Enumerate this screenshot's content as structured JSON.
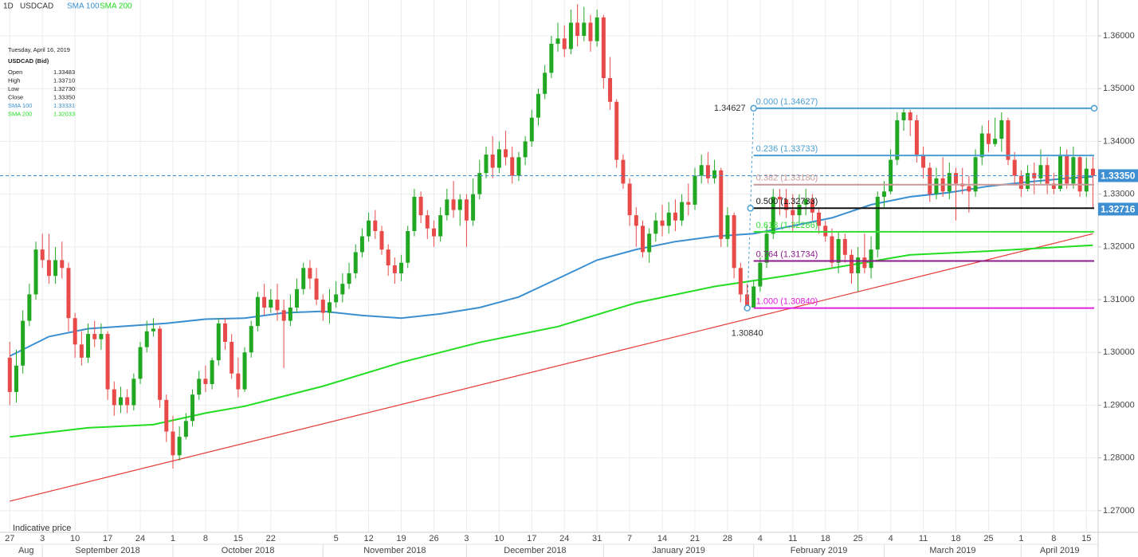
{
  "header": {
    "interval": "1D",
    "symbol": "USDCAD"
  },
  "info_box": {
    "date": "Tuesday, April 16, 2019",
    "title": "USDCAD (Bid)",
    "rows": [
      {
        "label": "Open",
        "value": "1.33483"
      },
      {
        "label": "High",
        "value": "1.33710"
      },
      {
        "label": "Low",
        "value": "1.32730"
      },
      {
        "label": "Close",
        "value": "1.33350"
      },
      {
        "label": "SMA 100",
        "value": "1.33331"
      },
      {
        "label": "SMA 200",
        "value": "1.32033"
      }
    ]
  },
  "chart_data": {
    "type": "candlestick",
    "up_color": "#22a722",
    "down_color": "#e84a4a",
    "ohlc": {
      "open": [
        1.299,
        1.2925,
        1.2975,
        1.306,
        1.311,
        1.3195,
        1.3175,
        1.3145,
        1.3175,
        1.316,
        1.3065,
        1.3015,
        1.299,
        1.3035,
        1.3025,
        1.3035,
        1.293,
        1.29,
        1.2915,
        1.29,
        1.295,
        1.301,
        1.304,
        1.3045,
        1.291,
        1.285,
        1.2805,
        1.284,
        1.287,
        1.292,
        1.295,
        1.294,
        1.2985,
        1.3055,
        1.302,
        1.296,
        1.293,
        1.3,
        1.305,
        1.3105,
        1.3085,
        1.31,
        1.308,
        1.306,
        1.3085,
        1.312,
        1.316,
        1.314,
        1.31,
        1.3075,
        1.3095,
        1.311,
        1.313,
        1.315,
        1.319,
        1.322,
        1.325,
        1.323,
        1.3195,
        1.3165,
        1.315,
        1.317,
        1.323,
        1.3295,
        1.326,
        1.3235,
        1.322,
        1.326,
        1.329,
        1.327,
        1.329,
        1.325,
        1.33,
        1.334,
        1.3375,
        1.335,
        1.3385,
        1.337,
        1.3335,
        1.337,
        1.34,
        1.3445,
        1.349,
        1.353,
        1.3585,
        1.3595,
        1.3575,
        1.3625,
        1.36,
        1.3625,
        1.359,
        1.3635,
        1.352,
        1.3475,
        1.3365,
        1.332,
        1.326,
        1.324,
        1.319,
        1.3225,
        1.325,
        1.324,
        1.3265,
        1.325,
        1.3285,
        1.328,
        1.3335,
        1.3355,
        1.333,
        1.3345,
        1.3215,
        1.326,
        1.316,
        1.311,
        1.3085,
        1.3125,
        1.317,
        1.3225,
        1.3295,
        1.329,
        1.327,
        1.326,
        1.328,
        1.329,
        1.3265,
        1.324,
        1.322,
        1.317,
        1.3215,
        1.3185,
        1.315,
        1.318,
        1.316,
        1.3195,
        1.3295,
        1.3305,
        1.3365,
        1.344,
        1.3455,
        1.344,
        1.3375,
        1.335,
        1.33,
        1.333,
        1.3305,
        1.334,
        1.332,
        1.3315,
        1.3305,
        1.337,
        1.3415,
        1.3395,
        1.3405,
        1.344,
        1.3365,
        1.3335,
        1.331,
        1.334,
        1.333,
        1.3355,
        1.332,
        1.331,
        1.3375,
        1.332,
        1.337,
        1.3305,
        1.33483
      ],
      "high": [
        1.302,
        1.3005,
        1.308,
        1.313,
        1.321,
        1.3225,
        1.3225,
        1.32,
        1.321,
        1.317,
        1.3075,
        1.304,
        1.3055,
        1.306,
        1.3055,
        1.304,
        1.2945,
        1.2935,
        1.293,
        1.296,
        1.302,
        1.306,
        1.3065,
        1.305,
        1.292,
        1.288,
        1.286,
        1.2885,
        1.293,
        1.2965,
        1.2975,
        1.299,
        1.3065,
        1.3065,
        1.3035,
        1.299,
        1.301,
        1.306,
        1.3115,
        1.313,
        1.312,
        1.313,
        1.31,
        1.311,
        1.314,
        1.317,
        1.3175,
        1.316,
        1.311,
        1.312,
        1.3135,
        1.315,
        1.317,
        1.3205,
        1.3235,
        1.3265,
        1.327,
        1.324,
        1.3205,
        1.318,
        1.3185,
        1.324,
        1.331,
        1.3305,
        1.327,
        1.325,
        1.3275,
        1.331,
        1.3325,
        1.33,
        1.33,
        1.333,
        1.3365,
        1.339,
        1.341,
        1.34,
        1.342,
        1.339,
        1.338,
        1.341,
        1.346,
        1.35,
        1.3545,
        1.36,
        1.3625,
        1.362,
        1.365,
        1.366,
        1.3655,
        1.364,
        1.365,
        1.364,
        1.356,
        1.348,
        1.3375,
        1.333,
        1.3275,
        1.325,
        1.3235,
        1.3265,
        1.328,
        1.3285,
        1.329,
        1.33,
        1.332,
        1.335,
        1.3375,
        1.338,
        1.3365,
        1.335,
        1.3275,
        1.3265,
        1.317,
        1.313,
        1.3135,
        1.318,
        1.324,
        1.331,
        1.331,
        1.331,
        1.33,
        1.33,
        1.331,
        1.33,
        1.3275,
        1.325,
        1.3235,
        1.323,
        1.3225,
        1.3195,
        1.32,
        1.3225,
        1.322,
        1.3305,
        1.3325,
        1.3385,
        1.3455,
        1.34627,
        1.346,
        1.345,
        1.339,
        1.336,
        1.335,
        1.337,
        1.336,
        1.335,
        1.335,
        1.3335,
        1.3385,
        1.343,
        1.344,
        1.3445,
        1.3455,
        1.3445,
        1.338,
        1.3345,
        1.3355,
        1.336,
        1.3385,
        1.337,
        1.334,
        1.339,
        1.3385,
        1.339,
        1.3375,
        1.337,
        1.3371
      ],
      "low": [
        1.29,
        1.2905,
        1.296,
        1.305,
        1.31,
        1.316,
        1.313,
        1.313,
        1.314,
        1.304,
        1.299,
        1.2975,
        1.298,
        1.301,
        1.3005,
        1.291,
        1.288,
        1.2885,
        1.2885,
        1.289,
        1.294,
        1.3,
        1.303,
        1.2895,
        1.283,
        1.278,
        1.2795,
        1.2835,
        1.286,
        1.291,
        1.2925,
        1.293,
        1.2975,
        1.3005,
        1.295,
        1.2915,
        1.2925,
        1.299,
        1.304,
        1.307,
        1.3075,
        1.306,
        1.297,
        1.305,
        1.3075,
        1.311,
        1.312,
        1.309,
        1.306,
        1.3055,
        1.3085,
        1.3095,
        1.312,
        1.314,
        1.318,
        1.321,
        1.3215,
        1.3185,
        1.3145,
        1.313,
        1.3135,
        1.316,
        1.322,
        1.3245,
        1.3215,
        1.32,
        1.321,
        1.325,
        1.3255,
        1.324,
        1.32,
        1.324,
        1.329,
        1.333,
        1.333,
        1.334,
        1.3355,
        1.332,
        1.3325,
        1.3355,
        1.339,
        1.343,
        1.348,
        1.352,
        1.357,
        1.356,
        1.3565,
        1.358,
        1.359,
        1.357,
        1.358,
        1.35,
        1.346,
        1.335,
        1.331,
        1.324,
        1.32,
        1.318,
        1.317,
        1.321,
        1.322,
        1.3225,
        1.323,
        1.324,
        1.326,
        1.327,
        1.332,
        1.332,
        1.332,
        1.32,
        1.32,
        1.314,
        1.3095,
        1.3084,
        1.309,
        1.3115,
        1.316,
        1.3215,
        1.326,
        1.3255,
        1.323,
        1.3245,
        1.326,
        1.325,
        1.3225,
        1.321,
        1.316,
        1.315,
        1.317,
        1.313,
        1.3115,
        1.315,
        1.314,
        1.318,
        1.3275,
        1.33,
        1.3355,
        1.342,
        1.341,
        1.336,
        1.333,
        1.3285,
        1.329,
        1.3295,
        1.329,
        1.325,
        1.33,
        1.3265,
        1.3295,
        1.3355,
        1.338,
        1.339,
        1.338,
        1.3355,
        1.332,
        1.3295,
        1.3305,
        1.33,
        1.332,
        1.33,
        1.33,
        1.3305,
        1.331,
        1.331,
        1.3295,
        1.3295,
        1.3273
      ],
      "close": [
        1.2925,
        1.2975,
        1.306,
        1.311,
        1.3195,
        1.3175,
        1.3145,
        1.3175,
        1.316,
        1.3065,
        1.3015,
        1.299,
        1.3035,
        1.3025,
        1.3035,
        1.293,
        1.29,
        1.2915,
        1.29,
        1.295,
        1.301,
        1.304,
        1.3045,
        1.291,
        1.285,
        1.2805,
        1.284,
        1.287,
        1.292,
        1.295,
        1.294,
        1.2985,
        1.3055,
        1.302,
        1.296,
        1.293,
        1.3,
        1.305,
        1.3105,
        1.3085,
        1.31,
        1.308,
        1.306,
        1.3085,
        1.312,
        1.316,
        1.314,
        1.31,
        1.3075,
        1.3095,
        1.311,
        1.313,
        1.315,
        1.319,
        1.322,
        1.325,
        1.323,
        1.3195,
        1.3165,
        1.315,
        1.317,
        1.323,
        1.3295,
        1.326,
        1.3235,
        1.322,
        1.326,
        1.329,
        1.327,
        1.329,
        1.325,
        1.33,
        1.334,
        1.3375,
        1.335,
        1.3385,
        1.337,
        1.3335,
        1.337,
        1.34,
        1.3445,
        1.349,
        1.353,
        1.3585,
        1.3595,
        1.3575,
        1.3625,
        1.36,
        1.3625,
        1.359,
        1.3635,
        1.352,
        1.3475,
        1.3365,
        1.332,
        1.326,
        1.324,
        1.319,
        1.3225,
        1.325,
        1.324,
        1.3265,
        1.325,
        1.3285,
        1.328,
        1.3335,
        1.3355,
        1.333,
        1.3345,
        1.3215,
        1.326,
        1.316,
        1.311,
        1.3085,
        1.3125,
        1.317,
        1.3225,
        1.3295,
        1.329,
        1.327,
        1.326,
        1.328,
        1.329,
        1.3265,
        1.324,
        1.322,
        1.317,
        1.3215,
        1.3185,
        1.315,
        1.318,
        1.316,
        1.3195,
        1.3295,
        1.3305,
        1.3365,
        1.344,
        1.3455,
        1.344,
        1.3375,
        1.335,
        1.33,
        1.333,
        1.3305,
        1.334,
        1.332,
        1.3315,
        1.3305,
        1.337,
        1.3415,
        1.3395,
        1.3405,
        1.344,
        1.3365,
        1.3335,
        1.331,
        1.334,
        1.333,
        1.3355,
        1.332,
        1.331,
        1.3375,
        1.332,
        1.337,
        1.3305,
        1.33483,
        1.3335
      ]
    },
    "series": [
      {
        "name": "SMA 100",
        "color": "#3a8fd0",
        "x": [
          0,
          6,
          12,
          18,
          24,
          30,
          36,
          42,
          48,
          54,
          60,
          66,
          72,
          78,
          84,
          90,
          96,
          102,
          108,
          114,
          120,
          126,
          132,
          138,
          144,
          150,
          156,
          162,
          166
        ],
        "values": [
          1.2993,
          1.303,
          1.3045,
          1.305,
          1.3055,
          1.3063,
          1.3065,
          1.3075,
          1.3078,
          1.307,
          1.3065,
          1.3073,
          1.3085,
          1.3105,
          1.314,
          1.3175,
          1.3195,
          1.321,
          1.322,
          1.3225,
          1.324,
          1.3255,
          1.328,
          1.3295,
          1.3303,
          1.3315,
          1.3323,
          1.333,
          1.33331
        ]
      },
      {
        "name": "SMA 200",
        "color": "#22dd22",
        "x": [
          0,
          12,
          22,
          30,
          36,
          48,
          60,
          72,
          84,
          96,
          108,
          120,
          138,
          150,
          166
        ],
        "values": [
          1.284,
          1.2857,
          1.2863,
          1.2885,
          1.2898,
          1.2936,
          1.2981,
          1.3019,
          1.3049,
          1.3094,
          1.3125,
          1.3147,
          1.3185,
          1.3192,
          1.32033
        ]
      }
    ],
    "trendline": {
      "color": "#e53935",
      "x": [
        0,
        166
      ],
      "values": [
        1.2718,
        1.3225
      ]
    },
    "fib_anchor": 114,
    "fib_levels": [
      {
        "label": "0.000 (1.34627)",
        "value": 1.34627,
        "color": "#4a9fd4"
      },
      {
        "label": "0.236 (1.33733)",
        "value": 1.33733,
        "color": "#4a9fd4"
      },
      {
        "label": "0.382 (1.33180)",
        "value": 1.3318,
        "color": "#c99a9a"
      },
      {
        "label": "0.500 (1.32733)",
        "value": 1.32733,
        "color": "#111111"
      },
      {
        "label": "0.618 (1.32286)",
        "value": 1.32286,
        "color": "#33dd33"
      },
      {
        "label": "0.764 (1.31734)",
        "value": 1.31734,
        "color": "#8b1a8b"
      },
      {
        "label": "1.000 (1.30840)",
        "value": 1.3084,
        "color": "#e020e0"
      }
    ],
    "annotations": [
      {
        "text": "1.34627",
        "value": 1.34627
      },
      {
        "text": "1.30840",
        "value": 1.3084
      }
    ],
    "price_tags": [
      {
        "label": "1.33350",
        "value": 1.3335,
        "color": "#3d8fd1"
      },
      {
        "label": "1.32716",
        "value": 1.32716,
        "color": "#3d8fd1"
      }
    ],
    "ylim": [
      1.2659,
      1.3668
    ],
    "yticks": [
      {
        "value": 1.27,
        "label": "1.27000"
      },
      {
        "value": 1.28,
        "label": "1.28000"
      },
      {
        "value": 1.29,
        "label": "1.29000"
      },
      {
        "value": 1.3,
        "label": "1.30000"
      },
      {
        "value": 1.31,
        "label": "1.31000"
      },
      {
        "value": 1.32,
        "label": "1.32000"
      },
      {
        "value": 1.33,
        "label": "1.33000"
      },
      {
        "value": 1.34,
        "label": "1.34000"
      },
      {
        "value": 1.35,
        "label": "1.35000"
      },
      {
        "value": 1.36,
        "label": "1.36000"
      }
    ],
    "xlim": [
      -1.5,
      166.8
    ],
    "xticks": [
      {
        "value": 0,
        "label": "27"
      },
      {
        "value": 5,
        "label": "3"
      },
      {
        "value": 10,
        "label": "10"
      },
      {
        "value": 15,
        "label": "17"
      },
      {
        "value": 20,
        "label": "24"
      },
      {
        "value": 25,
        "label": "1"
      },
      {
        "value": 30,
        "label": "8"
      },
      {
        "value": 35,
        "label": "15"
      },
      {
        "value": 40,
        "label": "22"
      },
      {
        "value": 50,
        "label": "5"
      },
      {
        "value": 55,
        "label": "12"
      },
      {
        "value": 60,
        "label": "19"
      },
      {
        "value": 65,
        "label": "26"
      },
      {
        "value": 70,
        "label": "3"
      },
      {
        "value": 75,
        "label": "10"
      },
      {
        "value": 80,
        "label": "17"
      },
      {
        "value": 85,
        "label": "24"
      },
      {
        "value": 90,
        "label": "31"
      },
      {
        "value": 95,
        "label": "7"
      },
      {
        "value": 100,
        "label": "14"
      },
      {
        "value": 105,
        "label": "21"
      },
      {
        "value": 110,
        "label": "28"
      },
      {
        "value": 115,
        "label": "4"
      },
      {
        "value": 120,
        "label": "11"
      },
      {
        "value": 125,
        "label": "18"
      },
      {
        "value": 130,
        "label": "25"
      },
      {
        "value": 135,
        "label": "4"
      },
      {
        "value": 140,
        "label": "11"
      },
      {
        "value": 145,
        "label": "18"
      },
      {
        "value": 150,
        "label": "25"
      },
      {
        "value": 155,
        "label": "1"
      },
      {
        "value": 160,
        "label": "8"
      },
      {
        "value": 165,
        "label": "15"
      }
    ],
    "month_labels": [
      {
        "value": 0,
        "label": "Aug"
      },
      {
        "value": 5,
        "label": "September 2018"
      },
      {
        "value": 25,
        "label": "October 2018"
      },
      {
        "value": 48,
        "label": "November 2018"
      },
      {
        "value": 70,
        "label": "December 2018"
      },
      {
        "value": 91,
        "label": "January 2019"
      },
      {
        "value": 114,
        "label": "February 2019"
      },
      {
        "value": 134,
        "label": "March 2019"
      },
      {
        "value": 155,
        "label": "April 2019"
      }
    ],
    "grid": true,
    "footnote": "Indicative price"
  }
}
